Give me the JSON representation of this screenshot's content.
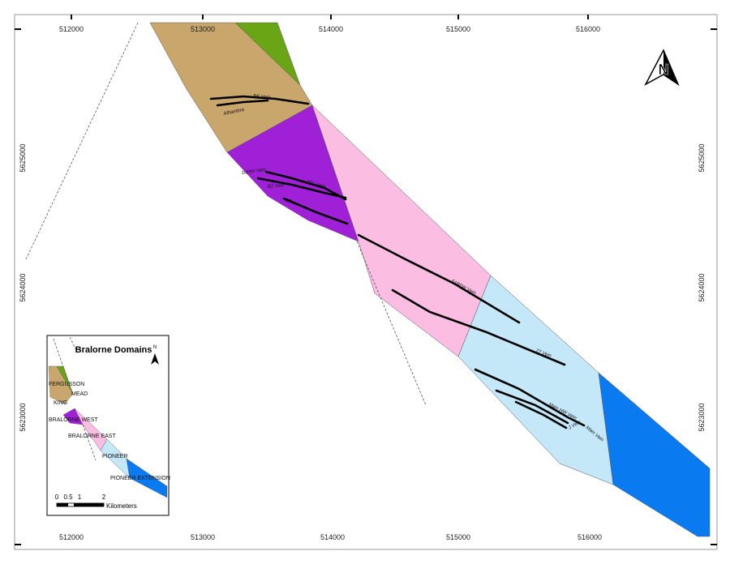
{
  "map": {
    "x_labels": [
      "512000",
      "513000",
      "514000",
      "515000",
      "516000"
    ],
    "y_labels": [
      "5625000",
      "5624000",
      "5623000"
    ],
    "north": "N",
    "veins": [
      "BK Vein",
      "Alhambra",
      "10HW Vein",
      "051 Vein",
      "B2 Vein",
      "B3",
      "51BFW Vein",
      "77 Vein",
      "Main HW Vein",
      "Main Vein",
      "J Vein"
    ]
  },
  "inset": {
    "title": "Bralorne Domains",
    "north": "N",
    "domains": [
      "FERGUSSON",
      "MEAD",
      "KING",
      "BRALORNE WEST",
      "BRALORNE EAST",
      "PIONEER",
      "PIONEER EXTENSION"
    ],
    "scale_labels": [
      "0",
      "0.5",
      "1",
      "2"
    ],
    "scale_unit": "Kilometers"
  }
}
